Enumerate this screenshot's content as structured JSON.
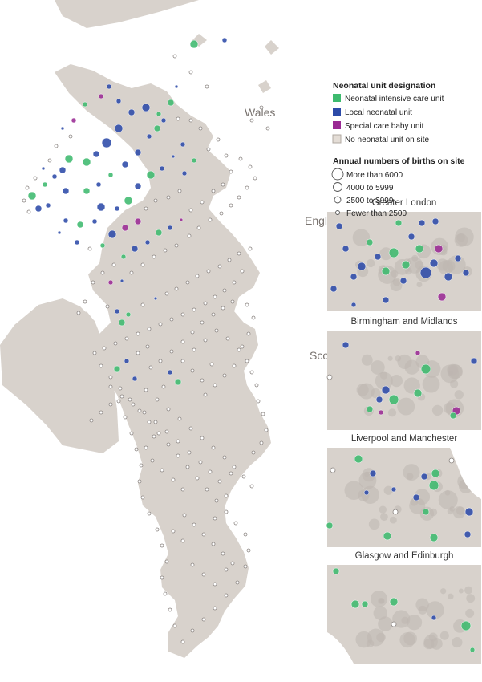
{
  "map": {
    "country_labels": [
      "Wales",
      "England",
      "Scotland"
    ],
    "inset_titles": [
      "Greater London",
      "Birmingham and Midlands",
      "Liverpool and Manchester",
      "Glasgow and Edinburgh"
    ]
  },
  "legend": {
    "designation_title": "Neonatal unit designation",
    "designation": [
      {
        "label": "Neonatal intensive care unit",
        "color": "#3dba6e"
      },
      {
        "label": "Local neonatal unit",
        "color": "#2c4aa8"
      },
      {
        "label": "Special care baby unit",
        "color": "#9a2a94"
      },
      {
        "label": "No neonatal unit on site",
        "color": "#e4ddd6"
      }
    ],
    "births_title": "Annual numbers of births on site",
    "births": [
      {
        "label": "More than 6000",
        "r": 7
      },
      {
        "label": "4000 to 5999",
        "r": 5.5
      },
      {
        "label": "2500 to 3999",
        "r": 4
      },
      {
        "label": "Fewer than 2500",
        "r": 2.5
      }
    ]
  },
  "colors": {
    "land": "#d8d2cc",
    "water": "#ffffff",
    "urban": "#bdb6b0",
    "nicu": "#3dba6e",
    "lnu": "#2c4aa8",
    "scbu": "#9a2a94",
    "none_fill": "#ffffff",
    "none_stroke": "#8a8480",
    "label": "#7a7470"
  }
}
